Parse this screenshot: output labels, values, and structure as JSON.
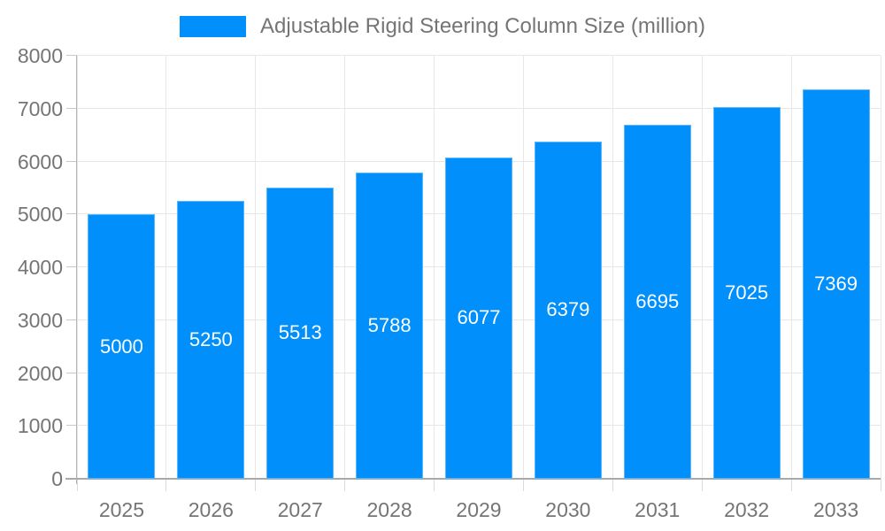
{
  "page": {
    "background": "#ffffff"
  },
  "legend": {
    "position": "top",
    "items": [
      {
        "label": "Adjustable Rigid Steering Column Size (million)",
        "swatch_color": "#008FFB"
      }
    ]
  },
  "chart_data": {
    "type": "bar",
    "title": "",
    "categories": [
      "2025",
      "2026",
      "2027",
      "2028",
      "2029",
      "2030",
      "2031",
      "2032",
      "2033"
    ],
    "series": [
      {
        "name": "Adjustable Rigid Steering Column Size (million)",
        "values": [
          5000,
          5250,
          5513,
          5788,
          6077,
          6379,
          6695,
          7025,
          7369
        ],
        "color": "#008FFB"
      }
    ],
    "xlabel": "",
    "ylabel": "",
    "ylim": [
      0,
      8000
    ],
    "yticks": [
      0,
      1000,
      2000,
      3000,
      4000,
      5000,
      6000,
      7000,
      8000
    ],
    "grid": true,
    "legend_position": "top",
    "data_labels": {
      "visible": true,
      "color": "#ffffff",
      "position": "middle-of-bar"
    }
  },
  "colors": {
    "bar": "#008FFB",
    "grid_line": "#e7e7e7",
    "axis_line": "#a9a9a9",
    "tick_label": "#757575",
    "legend_text": "#757575",
    "data_label": "#ffffff"
  }
}
